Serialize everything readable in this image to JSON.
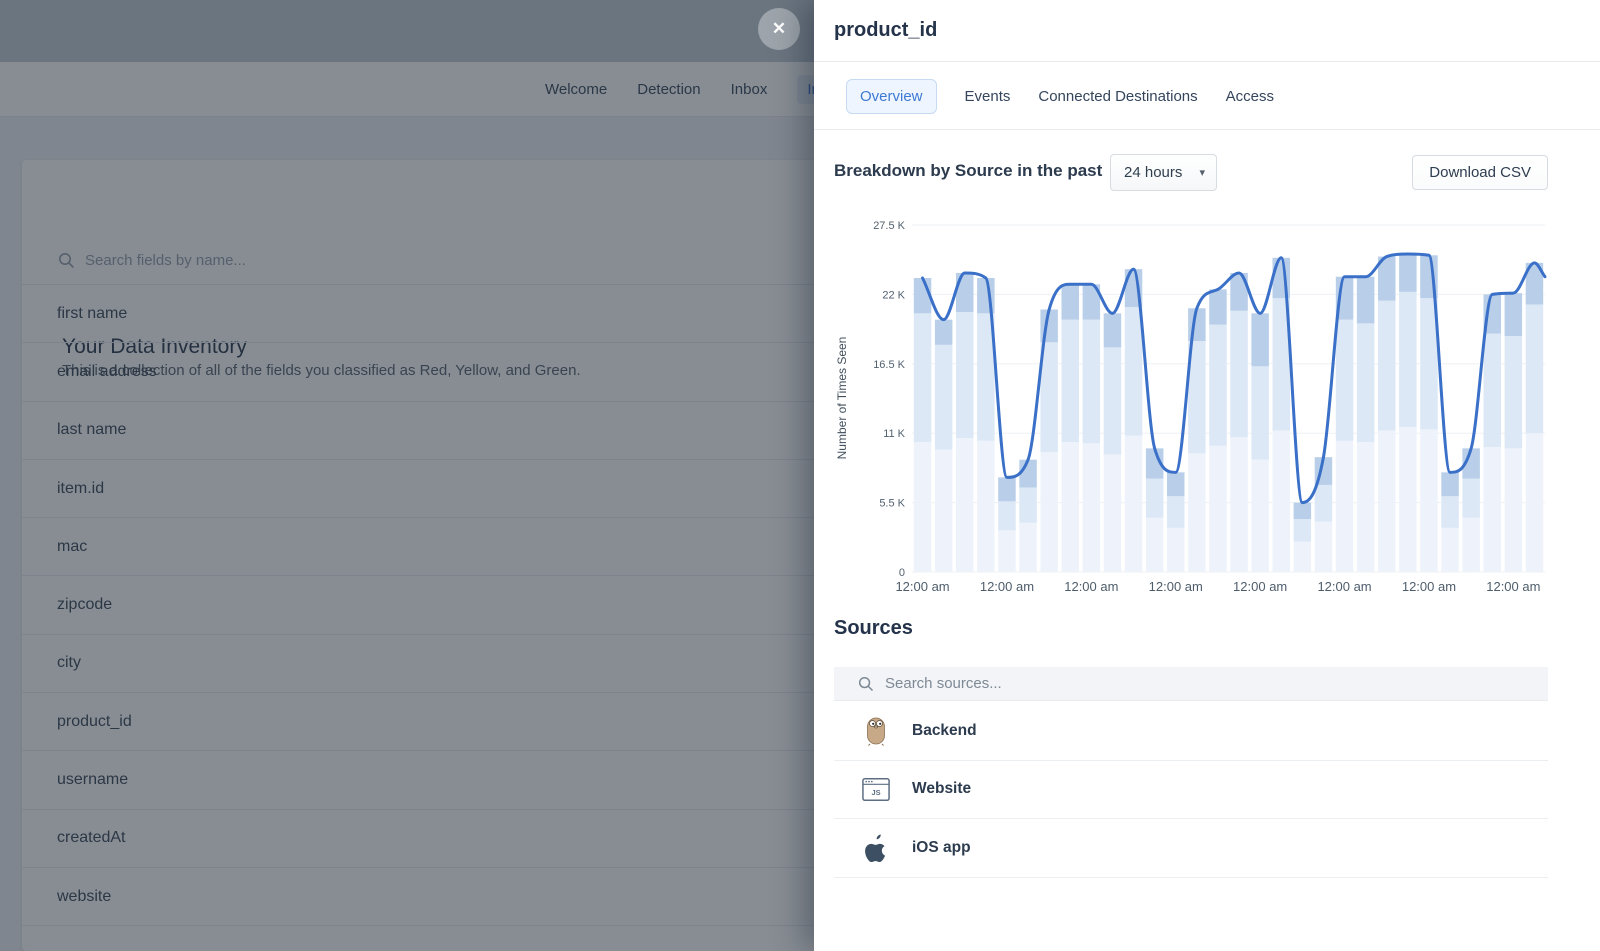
{
  "backdrop": {
    "nav_items": [
      {
        "label": "Welcome",
        "active": false
      },
      {
        "label": "Detection",
        "active": false
      },
      {
        "label": "Inbox",
        "active": false
      },
      {
        "label": "Inventory",
        "active": true
      }
    ],
    "page_title": "Your Data Inventory",
    "page_subtitle": "This is a collection of all of the fields you classified as Red, Yellow, and Green.",
    "search_placeholder": "Search fields by name...",
    "fields": [
      "first name",
      "email address",
      "last name",
      "item.id",
      "mac",
      "zipcode",
      "city",
      "product_id",
      "username",
      "createdAt",
      "website"
    ]
  },
  "modal": {
    "close_label": "✕",
    "title": "product_id",
    "tabs": [
      {
        "label": "Overview",
        "active": true
      },
      {
        "label": "Events",
        "active": false
      },
      {
        "label": "Connected Destinations",
        "active": false
      },
      {
        "label": "Access",
        "active": false
      }
    ],
    "breakdown_title": "Breakdown by Source in the past",
    "range_value": "24 hours",
    "range_caret": "▾",
    "download_label": "Download CSV",
    "sources_title": "Sources",
    "sources_search_placeholder": "Search sources...",
    "sources": [
      {
        "name": "Backend",
        "icon": "gopher-icon"
      },
      {
        "name": "Website",
        "icon": "js-browser-icon"
      },
      {
        "name": "iOS app",
        "icon": "apple-icon"
      }
    ]
  },
  "chart_data": {
    "type": "bar",
    "stacked": true,
    "overlay_line": "total",
    "title": "Breakdown by Source in the past",
    "xlabel": "",
    "ylabel": "Number of Times Seen",
    "unit": "thousands",
    "ylim": [
      0,
      27.5
    ],
    "ytick_values": [
      0,
      5.5,
      11,
      16.5,
      22,
      27.5
    ],
    "ytick_labels": [
      "0",
      "5.5 K",
      "11 K",
      "16.5 K",
      "22 K",
      "27.5 K"
    ],
    "x_tick_label": "12:00 am",
    "x_tick_every": 4,
    "bar_count": 30,
    "grid": true,
    "legend": false,
    "series": [
      {
        "name": "Backend",
        "color": "#eef3fb",
        "values": [
          10.3,
          9.7,
          10.6,
          10.4,
          3.3,
          3.9,
          9.5,
          10.3,
          10.2,
          9.3,
          10.8,
          4.3,
          3.5,
          9.4,
          10.0,
          10.7,
          8.9,
          11.2,
          2.4,
          4.0,
          10.4,
          10.3,
          11.2,
          11.5,
          11.3,
          3.5,
          4.3,
          9.9,
          9.8,
          11.0
        ]
      },
      {
        "name": "Website",
        "color": "#dce8f6",
        "values": [
          10.2,
          8.3,
          10.0,
          10.1,
          2.3,
          2.8,
          8.7,
          9.7,
          9.8,
          8.5,
          10.2,
          3.1,
          2.5,
          8.9,
          9.6,
          10.0,
          7.4,
          10.5,
          1.8,
          2.9,
          9.6,
          9.4,
          10.3,
          10.7,
          10.4,
          2.5,
          3.1,
          9.0,
          8.9,
          10.2
        ]
      },
      {
        "name": "iOS app",
        "color": "#b9cfe9",
        "values": [
          2.8,
          2.0,
          3.1,
          2.8,
          1.9,
          2.2,
          2.6,
          2.8,
          2.8,
          2.7,
          3.0,
          2.4,
          1.9,
          2.6,
          2.8,
          3.0,
          4.2,
          3.2,
          1.3,
          2.2,
          3.4,
          3.7,
          3.5,
          3.0,
          3.4,
          1.9,
          2.4,
          3.1,
          3.4,
          3.3
        ]
      }
    ],
    "line": {
      "color": "#3a70c8",
      "totals": [
        23.3,
        20.0,
        23.7,
        23.3,
        7.5,
        8.9,
        20.8,
        22.8,
        22.8,
        20.5,
        24.0,
        9.8,
        7.9,
        20.9,
        22.4,
        23.7,
        20.5,
        24.9,
        5.5,
        9.1,
        23.4,
        23.4,
        25.0,
        25.2,
        25.1,
        7.9,
        9.8,
        22.0,
        22.1,
        24.5
      ]
    }
  },
  "colors": {
    "accent_blue": "#3d79d3",
    "line_blue": "#3a70c8",
    "bar_bottom": "#eef3fb",
    "bar_middle": "#dce8f6",
    "bar_top": "#b9cfe9",
    "overlay": "rgba(26,36,50,0.52)",
    "text_dark": "#2c3b4e"
  }
}
